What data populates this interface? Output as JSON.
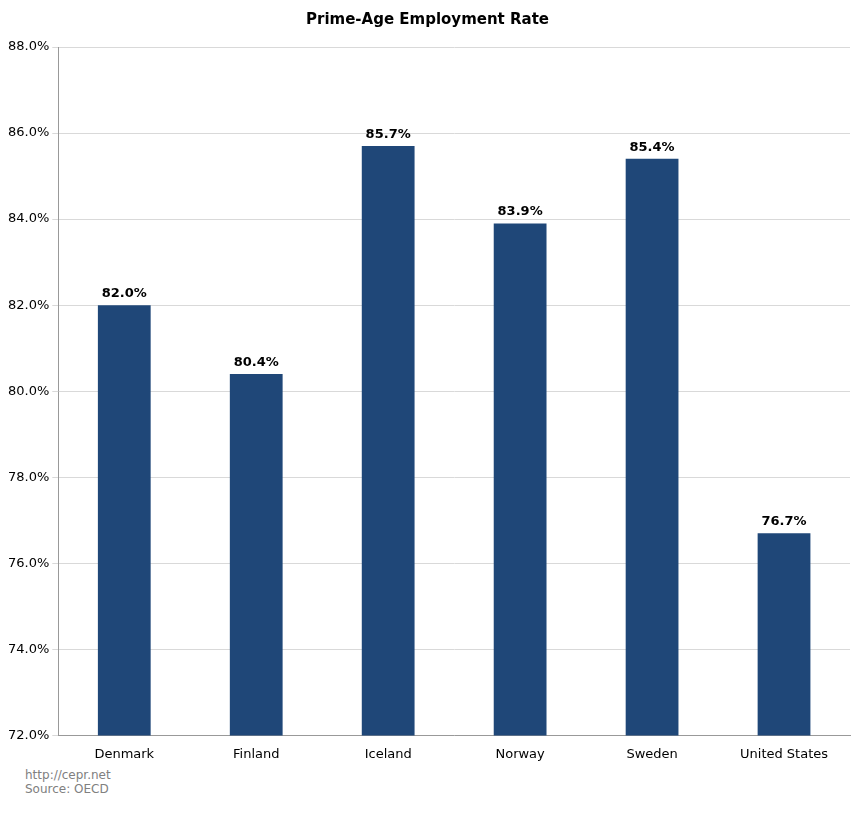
{
  "chart_data": {
    "type": "bar",
    "title": "Prime-Age Employment Rate",
    "categories": [
      "Denmark",
      "Finland",
      "Iceland",
      "Norway",
      "Sweden",
      "United States"
    ],
    "values": [
      82.0,
      80.4,
      85.7,
      83.9,
      85.4,
      76.7
    ],
    "value_labels": [
      "82.0%",
      "80.4%",
      "85.7%",
      "83.9%",
      "85.4%",
      "76.7%"
    ],
    "data_labels": true,
    "color": "#1f4778",
    "ylim": [
      72,
      88
    ],
    "yticks": [
      {
        "value": 72,
        "label": "72.0%"
      },
      {
        "value": 74,
        "label": "74.0%"
      },
      {
        "value": 76,
        "label": "76.0%"
      },
      {
        "value": 78,
        "label": "78.0%"
      },
      {
        "value": 80,
        "label": "80.0%"
      },
      {
        "value": 82,
        "label": "82.0%"
      },
      {
        "value": 84,
        "label": "84.0%"
      },
      {
        "value": 86,
        "label": "86.0%"
      },
      {
        "value": 88,
        "label": "88.0%"
      }
    ],
    "grid": true,
    "annotations": [
      "http://cepr.net",
      "Source: OECD"
    ]
  }
}
